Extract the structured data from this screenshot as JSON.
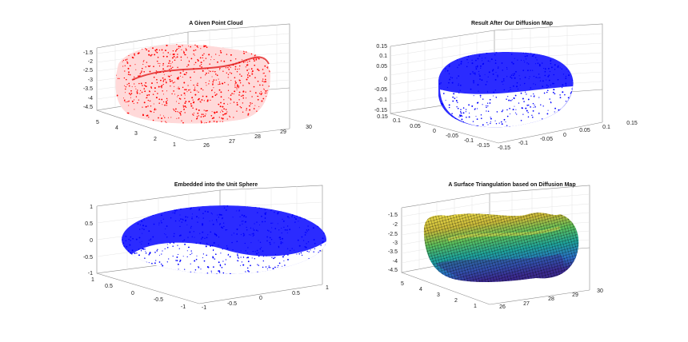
{
  "chart_data": [
    {
      "type": "scatter",
      "title": "A Given Point Cloud",
      "marker_color": "#ff0000",
      "z_ticks": [
        "-1.5",
        "-2",
        "-2.5",
        "-3",
        "-3.5",
        "-4",
        "-4.5"
      ],
      "left_ticks": [
        "5",
        "4",
        "3",
        "2",
        "1"
      ],
      "right_ticks": [
        "26",
        "27",
        "28",
        "29",
        "30"
      ],
      "grid": true
    },
    {
      "type": "scatter",
      "title": "Result After Our Diffusion Map",
      "marker_color": "#0000ff",
      "z_ticks": [
        "0.15",
        "0.1",
        "0.05",
        "0",
        "-0.05",
        "-0.1",
        "-0.15"
      ],
      "left_ticks": [
        "0.15",
        "0.1",
        "0.05",
        "0",
        "-0.05",
        "-0.1",
        "-0.15"
      ],
      "right_ticks": [
        "-0.15",
        "-0.1",
        "-0.05",
        "0",
        "0.05",
        "0.1",
        "0.15"
      ],
      "grid": true
    },
    {
      "type": "scatter",
      "title": "Embedded into the Unit Sphere",
      "marker_color": "#0000ff",
      "z_ticks": [
        "1",
        "0.5",
        "0",
        "-0.5",
        "-1"
      ],
      "left_ticks": [
        "1",
        "0.5",
        "0",
        "-0.5",
        "-1"
      ],
      "right_ticks": [
        "-1",
        "-0.5",
        "0",
        "0.5",
        "1"
      ],
      "grid": true
    },
    {
      "type": "surface",
      "title": "A Surface Triangulation based on Diffusion Map",
      "colormap": [
        "#3b2a8f",
        "#2a6fc4",
        "#1fa39a",
        "#5cbf5c",
        "#c9b93a",
        "#f0e04a"
      ],
      "z_ticks": [
        "-1.5",
        "-2",
        "-2.5",
        "-3",
        "-3.5",
        "-4",
        "-4.5"
      ],
      "left_ticks": [
        "5",
        "4",
        "3",
        "2",
        "1"
      ],
      "right_ticks": [
        "26",
        "27",
        "28",
        "29",
        "30"
      ],
      "grid": true
    }
  ]
}
